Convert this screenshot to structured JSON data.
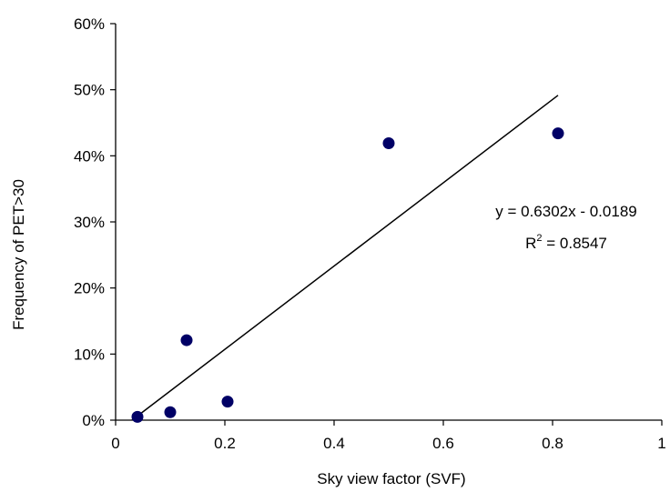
{
  "chart_data": {
    "type": "scatter",
    "title": "",
    "xlabel": "Sky view factor (SVF)",
    "ylabel": "Frequency of PET>30",
    "xlim": [
      0,
      1
    ],
    "ylim": [
      0,
      0.6
    ],
    "x_ticks": [
      0,
      0.2,
      0.4,
      0.6,
      0.8,
      1
    ],
    "x_tick_labels": [
      "0",
      "0.2",
      "0.4",
      "0.6",
      "0.8",
      "1"
    ],
    "y_ticks": [
      0,
      0.1,
      0.2,
      0.3,
      0.4,
      0.5,
      0.6
    ],
    "y_tick_labels": [
      "0%",
      "10%",
      "20%",
      "30%",
      "40%",
      "50%",
      "60%"
    ],
    "grid": false,
    "legend": "none",
    "series": [
      {
        "points": [
          {
            "x": 0.04,
            "y": 0.005
          },
          {
            "x": 0.1,
            "y": 0.012
          },
          {
            "x": 0.13,
            "y": 0.121
          },
          {
            "x": 0.205,
            "y": 0.028
          },
          {
            "x": 0.5,
            "y": 0.419
          },
          {
            "x": 0.81,
            "y": 0.434
          }
        ],
        "marker_color": "#000066"
      }
    ],
    "trendline": {
      "slope": 0.6302,
      "intercept": -0.0189,
      "x_range": [
        0.03,
        0.81
      ],
      "color": "#000000"
    },
    "annotations": {
      "equation": "y = 0.6302x - 0.0189",
      "r2_prefix": "R",
      "r2_sup": "2",
      "r2_suffix": " = 0.8547"
    }
  }
}
